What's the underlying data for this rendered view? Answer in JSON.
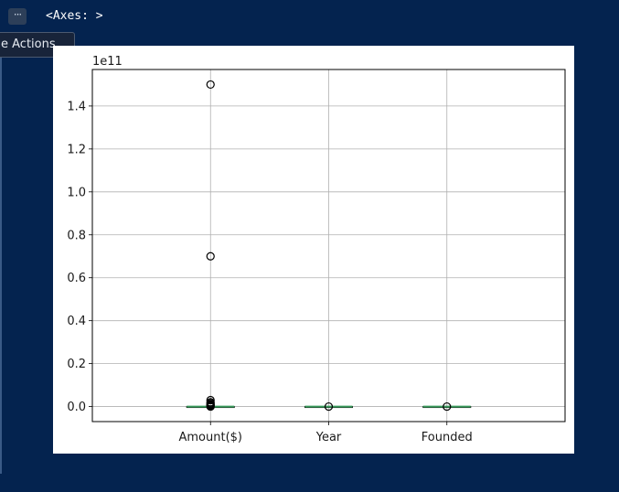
{
  "toolbar": {
    "more_icon": "ellipsis-icon",
    "more_glyph": "···",
    "tooltip": "e Actions..."
  },
  "output": {
    "repr": "<Axes: >"
  },
  "colors": {
    "background": "#04234f",
    "median": "#3a9a5b",
    "grid": "#b0b0b0"
  },
  "chart_data": {
    "type": "box",
    "title": "",
    "xlabel": "",
    "ylabel": "",
    "y_scale_label": "1e11",
    "ylim": [
      -0.07,
      1.57
    ],
    "grid": true,
    "yticks": [
      0.0,
      0.2,
      0.4,
      0.6,
      0.8,
      1.0,
      1.2,
      1.4
    ],
    "ytick_labels": [
      "0.0",
      "0.2",
      "0.4",
      "0.6",
      "0.8",
      "1.0",
      "1.2",
      "1.4"
    ],
    "categories": [
      "Amount($)",
      "Year",
      "Founded"
    ],
    "series": [
      {
        "category": "Amount($)",
        "median": 0.0,
        "q1": 0.0,
        "q3": 0.0,
        "outliers": [
          1.5,
          0.7,
          0.03,
          0.02,
          0.015,
          0.01,
          0.007,
          0.004,
          0.0
        ]
      },
      {
        "category": "Year",
        "median": 0.0,
        "q1": 0.0,
        "q3": 0.0,
        "outliers": [
          0.0
        ]
      },
      {
        "category": "Founded",
        "median": 0.0,
        "q1": 0.0,
        "q3": 0.0,
        "outliers": [
          0.0
        ]
      }
    ]
  }
}
